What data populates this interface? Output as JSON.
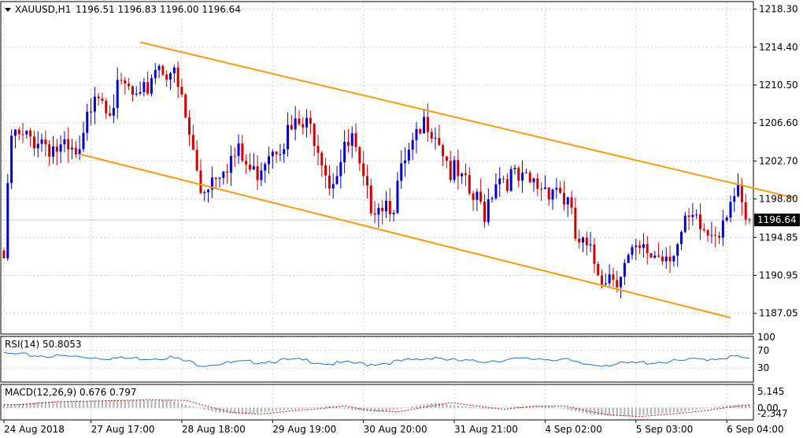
{
  "header": {
    "symbol": "XAUUSD,H1",
    "ohlc": "1196.51 1196.83 1196.00 1196.64"
  },
  "price_label": "1196.64",
  "rsi_label": "RSI(14) 50.8053",
  "macd_label": "MACD(12,26,9) 0.676 0.797",
  "colors": {
    "bull": "#0000cc",
    "bear": "#cc0000",
    "channel": "#f39c12",
    "rsi": "#1e73be",
    "macd_signal": "#cc0000",
    "grid": "#d0d0d0"
  },
  "chart_data": [
    {
      "type": "candlestick",
      "name": "main",
      "ylim": [
        1185.0,
        1219.0
      ],
      "y_ticks": [
        "1218.30",
        "1214.40",
        "1210.50",
        "1206.60",
        "1202.70",
        "1198.80",
        "1194.85",
        "1190.95",
        "1187.05"
      ],
      "y_tick_values": [
        1218.3,
        1214.4,
        1210.5,
        1206.6,
        1202.7,
        1198.8,
        1194.85,
        1190.95,
        1187.05
      ],
      "x_ticks": [
        "24 Aug 2018",
        "27 Aug 17:00",
        "28 Aug 18:00",
        "29 Aug 19:00",
        "30 Aug 20:00",
        "31 Aug 21:00",
        "4 Sep 02:00",
        "5 Sep 03:00",
        "6 Sep 04:00"
      ],
      "last_price": 1196.64,
      "channel": {
        "upper": [
          [
            36,
            1214.9
          ],
          [
            209,
            1198.9
          ]
        ],
        "lower": [
          [
            20,
            1203.4
          ],
          [
            192,
            1186.6
          ]
        ]
      },
      "anchors": [
        [
          0,
          1193.5
        ],
        [
          2,
          1206.0
        ],
        [
          5,
          1205.5
        ],
        [
          9,
          1206.0
        ],
        [
          13,
          1205.0
        ],
        [
          17,
          1204.0
        ],
        [
          20,
          1203.5
        ],
        [
          24,
          1211.5
        ],
        [
          28,
          1209.5
        ],
        [
          32,
          1211.0
        ],
        [
          36,
          1209.0
        ],
        [
          40,
          1213.5
        ],
        [
          44,
          1213.0
        ],
        [
          47,
          1209.5
        ],
        [
          49,
          1206.0
        ],
        [
          52,
          1200.5
        ],
        [
          55,
          1202.0
        ],
        [
          58,
          1203.5
        ],
        [
          62,
          1204.0
        ],
        [
          66,
          1202.0
        ],
        [
          70,
          1205.0
        ],
        [
          74,
          1206.0
        ],
        [
          78,
          1207.0
        ],
        [
          82,
          1206.5
        ],
        [
          84,
          1204.5
        ],
        [
          86,
          1201.5
        ],
        [
          89,
          1203.5
        ],
        [
          92,
          1205.5
        ],
        [
          94,
          1202.0
        ],
        [
          96,
          1199.5
        ],
        [
          99,
          1199.5
        ],
        [
          103,
          1199.5
        ],
        [
          106,
          1203.0
        ],
        [
          110,
          1206.0
        ],
        [
          112,
          1208.0
        ],
        [
          115,
          1206.0
        ],
        [
          118,
          1202.5
        ],
        [
          121,
          1201.0
        ],
        [
          124,
          1199.5
        ],
        [
          127,
          1198.5
        ],
        [
          130,
          1202.0
        ],
        [
          133,
          1202.0
        ],
        [
          137,
          1201.0
        ],
        [
          140,
          1201.0
        ],
        [
          143,
          1201.0
        ],
        [
          146,
          1201.0
        ],
        [
          149,
          1199.0
        ],
        [
          151,
          1195.5
        ],
        [
          155,
          1193.5
        ],
        [
          158,
          1192.0
        ],
        [
          162,
          1192.0
        ],
        [
          166,
          1193.5
        ],
        [
          170,
          1194.0
        ],
        [
          174,
          1194.0
        ],
        [
          178,
          1195.0
        ],
        [
          181,
          1197.0
        ],
        [
          184,
          1196.5
        ],
        [
          186,
          1196.0
        ],
        [
          189,
          1197.0
        ],
        [
          192,
          1200.0
        ],
        [
          194,
          1199.5
        ],
        [
          196,
          1197.0
        ],
        [
          197,
          1196.6
        ]
      ],
      "candle_count": 198
    },
    {
      "type": "line",
      "name": "RSI(14)",
      "ylim": [
        0,
        100
      ],
      "y_ticks": [
        "100",
        "70",
        "30"
      ],
      "y_tick_values": [
        100,
        70,
        30
      ],
      "last_value": 50.8053,
      "anchors": [
        [
          0,
          65
        ],
        [
          5,
          62
        ],
        [
          12,
          60
        ],
        [
          20,
          58
        ],
        [
          26,
          56
        ],
        [
          32,
          54
        ],
        [
          38,
          55
        ],
        [
          44,
          57
        ],
        [
          48,
          48
        ],
        [
          52,
          40
        ],
        [
          56,
          42
        ],
        [
          62,
          45
        ],
        [
          68,
          47
        ],
        [
          74,
          50
        ],
        [
          80,
          50
        ],
        [
          86,
          42
        ],
        [
          92,
          44
        ],
        [
          96,
          41
        ],
        [
          102,
          45
        ],
        [
          110,
          52
        ],
        [
          114,
          58
        ],
        [
          118,
          50
        ],
        [
          124,
          47
        ],
        [
          130,
          50
        ],
        [
          136,
          52
        ],
        [
          142,
          54
        ],
        [
          148,
          52
        ],
        [
          152,
          42
        ],
        [
          156,
          40
        ],
        [
          160,
          41
        ],
        [
          166,
          43
        ],
        [
          172,
          46
        ],
        [
          178,
          48
        ],
        [
          184,
          52
        ],
        [
          190,
          56
        ],
        [
          194,
          58
        ],
        [
          197,
          51
        ]
      ]
    },
    {
      "type": "histogram",
      "name": "MACD(12,26,9)",
      "ylim": [
        -3.0,
        6.0
      ],
      "y_ticks": [
        "5.145",
        "0.00",
        "-2.347"
      ],
      "y_tick_values": [
        5.145,
        0.0,
        -2.347
      ],
      "macd_last": 0.676,
      "signal_last": 0.797,
      "anchors": [
        [
          0,
          0.8
        ],
        [
          10,
          1.6
        ],
        [
          24,
          1.9
        ],
        [
          34,
          2.1
        ],
        [
          44,
          2.0
        ],
        [
          50,
          0.3
        ],
        [
          56,
          -1.2
        ],
        [
          64,
          -1.7
        ],
        [
          72,
          -0.8
        ],
        [
          80,
          -0.2
        ],
        [
          86,
          0.5
        ],
        [
          92,
          -0.6
        ],
        [
          100,
          -1.1
        ],
        [
          108,
          0.3
        ],
        [
          114,
          1.4
        ],
        [
          120,
          0.6
        ],
        [
          128,
          -0.4
        ],
        [
          136,
          0.4
        ],
        [
          144,
          0.5
        ],
        [
          150,
          -0.8
        ],
        [
          156,
          -1.9
        ],
        [
          164,
          -2.3
        ],
        [
          172,
          -1.7
        ],
        [
          180,
          -0.9
        ],
        [
          188,
          0.2
        ],
        [
          194,
          0.9
        ],
        [
          197,
          0.7
        ]
      ]
    }
  ]
}
